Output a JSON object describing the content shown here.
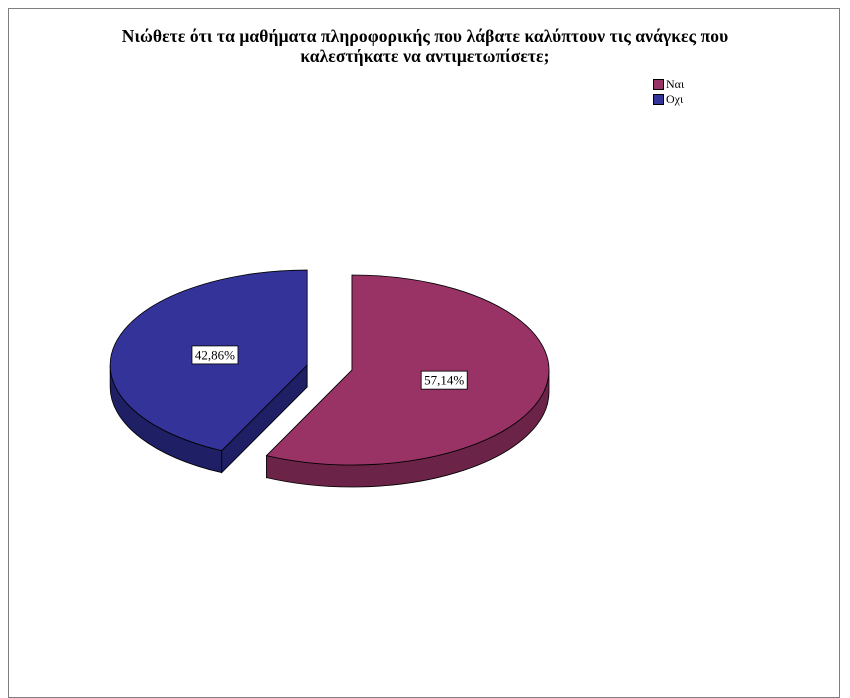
{
  "chart_data": {
    "type": "pie",
    "title_lines": [
      "Νιώθετε ότι τα μαθήματα πληροφορικής που λάβατε καλύπτουν τις ανάγκες που",
      "καλεστήκατε να αντιμετωπίσετε;"
    ],
    "slices": [
      {
        "label": "Ναι",
        "value": 57.14,
        "value_label": "57,14%",
        "color": "#993366",
        "side_color": "#6b2347",
        "exploded": false
      },
      {
        "label": "Οχι",
        "value": 42.86,
        "value_label": "42,86%",
        "color": "#333399",
        "side_color": "#1f1f66",
        "exploded": true
      }
    ],
    "legend_position": "top-right",
    "style": "3d-exploded"
  }
}
